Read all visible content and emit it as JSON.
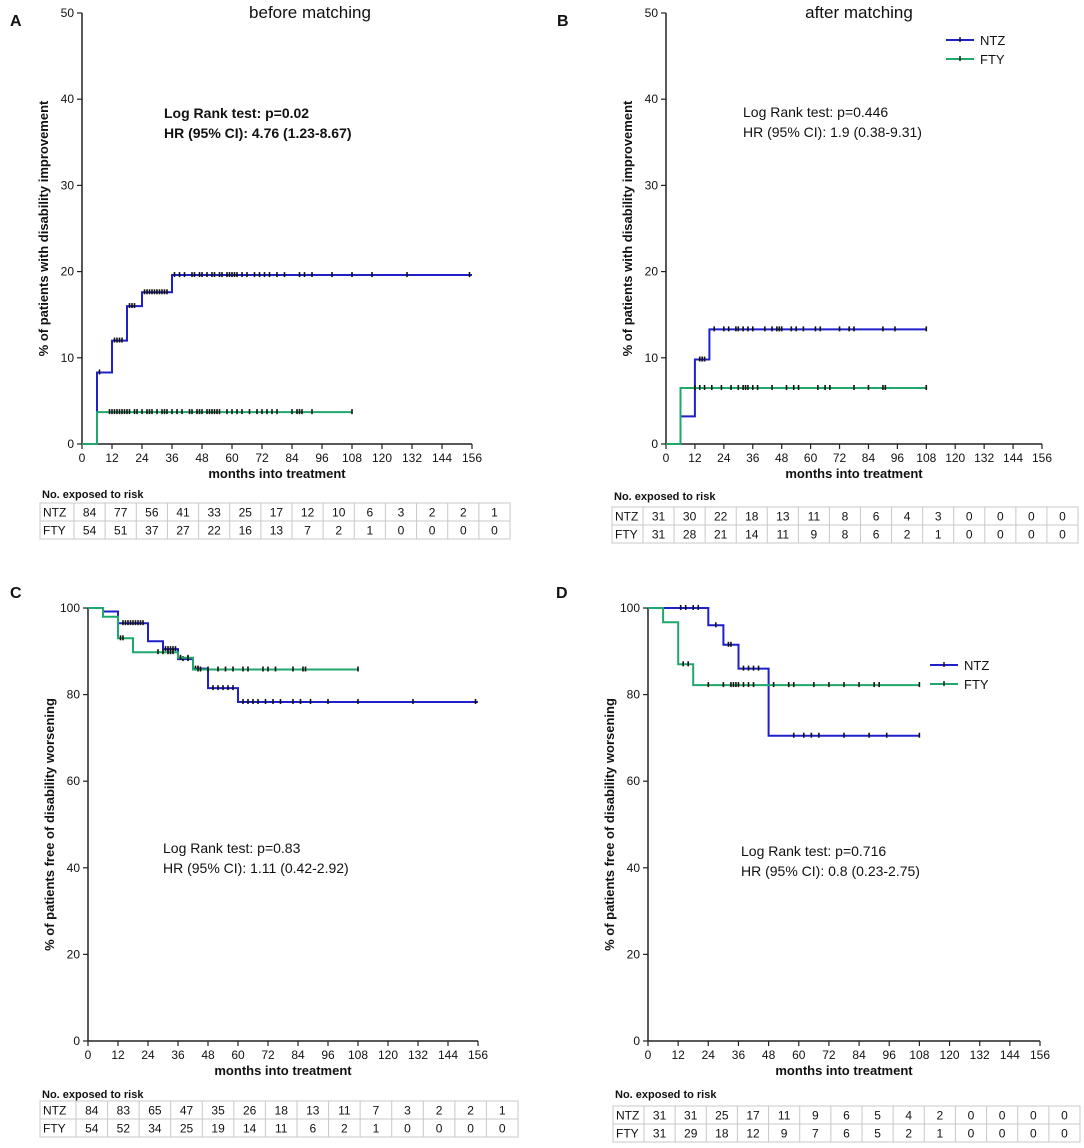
{
  "colors": {
    "NTZ": "#1f1fcc",
    "FTY": "#1fa86c",
    "axis": "#222222"
  },
  "chart_data": [
    {
      "id": "A",
      "type": "line",
      "panel_label": "A",
      "title": "before matching",
      "xlabel": "months into treatment",
      "ylabel": "% of patients with disability improvement",
      "xlim": [
        0,
        156
      ],
      "ylim": [
        0,
        50
      ],
      "xticks": [
        0,
        12,
        24,
        36,
        48,
        60,
        72,
        84,
        96,
        108,
        120,
        132,
        144,
        156
      ],
      "yticks": [
        0,
        10,
        20,
        30,
        40,
        50
      ],
      "stats": [
        "Log Rank test: p=0.02",
        "HR (95% CI): 4.76 (1.23-8.67)"
      ],
      "stats_bold": true,
      "legend": [],
      "series": [
        {
          "name": "NTZ",
          "steps": [
            [
              0,
              0
            ],
            [
              6,
              0
            ],
            [
              6,
              8.3
            ],
            [
              12,
              8.3
            ],
            [
              12,
              12
            ],
            [
              18,
              12
            ],
            [
              18,
              16
            ],
            [
              24,
              16
            ],
            [
              24,
              17.6
            ],
            [
              36,
              17.6
            ],
            [
              36,
              19.6
            ],
            [
              156,
              19.6
            ]
          ],
          "censor": [
            7,
            13,
            14,
            15,
            16,
            19,
            20,
            21,
            25,
            26,
            27,
            28,
            29,
            30,
            31,
            32,
            33,
            34,
            37,
            39,
            41,
            44,
            45,
            47,
            48,
            50,
            52,
            53,
            55,
            56,
            58,
            59,
            60,
            61,
            62,
            64,
            66,
            69,
            71,
            73,
            75,
            78,
            81,
            87,
            89,
            92,
            100,
            108,
            116,
            130,
            155
          ]
        },
        {
          "name": "FTY",
          "steps": [
            [
              0,
              0
            ],
            [
              6,
              0
            ],
            [
              6,
              3.7
            ],
            [
              108,
              3.7
            ]
          ],
          "censor": [
            11,
            12,
            13,
            14,
            15,
            16,
            17,
            18,
            19,
            21,
            22,
            24,
            26,
            27,
            28,
            30,
            32,
            33,
            34,
            36,
            38,
            40,
            43,
            44,
            46,
            47,
            48,
            50,
            51,
            52,
            53,
            54,
            55,
            58,
            60,
            62,
            64,
            67,
            70,
            72,
            74,
            76,
            78,
            84,
            86,
            87,
            88,
            92,
            108
          ]
        }
      ],
      "risk_table": {
        "title": "No. exposed to risk",
        "rows": [
          {
            "label": "NTZ",
            "values": [
              "84",
              "77",
              "56",
              "41",
              "33",
              "25",
              "17",
              "12",
              "10",
              "6",
              "3",
              "2",
              "2",
              "1"
            ]
          },
          {
            "label": "FTY",
            "values": [
              "54",
              "51",
              "37",
              "27",
              "22",
              "16",
              "13",
              "7",
              "2",
              "1",
              "0",
              "0",
              "0",
              "0"
            ]
          }
        ]
      }
    },
    {
      "id": "B",
      "type": "line",
      "panel_label": "B",
      "title": "after matching",
      "xlabel": "months into treatment",
      "ylabel": "% of patients with disability improvement",
      "xlim": [
        0,
        156
      ],
      "ylim": [
        0,
        50
      ],
      "xticks": [
        0,
        12,
        24,
        36,
        48,
        60,
        72,
        84,
        96,
        108,
        120,
        132,
        144,
        156
      ],
      "yticks": [
        0,
        10,
        20,
        30,
        40,
        50
      ],
      "stats": [
        "Log Rank test: p=0.446",
        "HR (95% CI): 1.9 (0.38-9.31)"
      ],
      "stats_bold": false,
      "legend": [
        "NTZ",
        "FTY"
      ],
      "series": [
        {
          "name": "NTZ",
          "steps": [
            [
              0,
              0
            ],
            [
              6,
              0
            ],
            [
              6,
              3.2
            ],
            [
              12,
              3.2
            ],
            [
              12,
              9.8
            ],
            [
              18,
              9.8
            ],
            [
              18,
              13.3
            ],
            [
              108,
              13.3
            ]
          ],
          "censor": [
            14,
            15,
            16,
            20,
            24,
            26,
            29,
            30,
            32,
            34,
            36,
            41,
            44,
            46,
            47,
            48,
            52,
            54,
            57,
            62,
            64,
            72,
            76,
            78,
            90,
            95,
            108
          ]
        },
        {
          "name": "FTY",
          "steps": [
            [
              0,
              0
            ],
            [
              6,
              0
            ],
            [
              6,
              6.5
            ],
            [
              108,
              6.5
            ]
          ],
          "censor": [
            12,
            14,
            16,
            19,
            23,
            27,
            30,
            32,
            33,
            34,
            36,
            38,
            44,
            50,
            53,
            55,
            63,
            66,
            68,
            78,
            84,
            90,
            91,
            108
          ]
        }
      ],
      "risk_table": {
        "title": "No. exposed to risk",
        "rows": [
          {
            "label": "NTZ",
            "values": [
              "31",
              "30",
              "22",
              "18",
              "13",
              "11",
              "8",
              "6",
              "4",
              "3",
              "0",
              "0",
              "0",
              "0"
            ]
          },
          {
            "label": "FTY",
            "values": [
              "31",
              "28",
              "21",
              "14",
              "11",
              "9",
              "8",
              "6",
              "2",
              "1",
              "0",
              "0",
              "0",
              "0"
            ]
          }
        ]
      }
    },
    {
      "id": "C",
      "type": "line",
      "panel_label": "C",
      "title": "",
      "xlabel": "months into treatment",
      "ylabel": "% of patients free of disability worsening",
      "xlim": [
        0,
        156
      ],
      "ylim": [
        0,
        100
      ],
      "xticks": [
        0,
        12,
        24,
        36,
        48,
        60,
        72,
        84,
        96,
        108,
        120,
        132,
        144,
        156
      ],
      "yticks": [
        0,
        20,
        40,
        60,
        80,
        100
      ],
      "stats": [
        "Log Rank test: p=0.83",
        "HR (95% CI): 1.11 (0.42-2.92)"
      ],
      "stats_bold": false,
      "legend": [],
      "series": [
        {
          "name": "NTZ",
          "steps": [
            [
              0,
              100
            ],
            [
              6,
              100
            ],
            [
              6,
              99.2
            ],
            [
              12,
              99.2
            ],
            [
              12,
              96.5
            ],
            [
              24,
              96.5
            ],
            [
              24,
              92.3
            ],
            [
              30,
              92.3
            ],
            [
              30,
              90.5
            ],
            [
              36,
              90.5
            ],
            [
              36,
              88.2
            ],
            [
              42,
              88.2
            ],
            [
              42,
              86
            ],
            [
              48,
              86
            ],
            [
              48,
              81.5
            ],
            [
              60,
              81.5
            ],
            [
              60,
              78.3
            ],
            [
              156,
              78.3
            ]
          ],
          "censor": [
            14,
            15,
            16,
            17,
            18,
            19,
            20,
            21,
            22,
            31,
            32,
            33,
            34,
            35,
            38,
            40,
            43,
            44,
            50,
            52,
            54,
            56,
            58,
            62,
            64,
            66,
            68,
            71,
            74,
            77,
            82,
            85,
            89,
            96,
            108,
            130,
            155
          ]
        },
        {
          "name": "FTY",
          "steps": [
            [
              0,
              100
            ],
            [
              6,
              100
            ],
            [
              6,
              98
            ],
            [
              12,
              98
            ],
            [
              12,
              93
            ],
            [
              18,
              93
            ],
            [
              18,
              89.8
            ],
            [
              36,
              89.8
            ],
            [
              36,
              88.5
            ],
            [
              42,
              88.5
            ],
            [
              42,
              85.8
            ],
            [
              108,
              85.8
            ]
          ],
          "censor": [
            13,
            14,
            28,
            30,
            32,
            33,
            34,
            37,
            40,
            44,
            45,
            48,
            52,
            55,
            58,
            62,
            64,
            70,
            72,
            75,
            82,
            86,
            87,
            108
          ]
        }
      ],
      "risk_table": {
        "title": "No. exposed to risk",
        "rows": [
          {
            "label": "NTZ",
            "values": [
              "84",
              "83",
              "65",
              "47",
              "35",
              "26",
              "18",
              "13",
              "11",
              "7",
              "3",
              "2",
              "2",
              "1"
            ]
          },
          {
            "label": "FTY",
            "values": [
              "54",
              "52",
              "34",
              "25",
              "19",
              "14",
              "11",
              "6",
              "2",
              "1",
              "0",
              "0",
              "0",
              "0"
            ]
          }
        ]
      }
    },
    {
      "id": "D",
      "type": "line",
      "panel_label": "D",
      "title": "",
      "xlabel": "months into treatment",
      "ylabel": "% of patients free of disability worsening",
      "xlim": [
        0,
        156
      ],
      "ylim": [
        0,
        100
      ],
      "xticks": [
        0,
        12,
        24,
        36,
        48,
        60,
        72,
        84,
        96,
        108,
        120,
        132,
        144,
        156
      ],
      "yticks": [
        0,
        20,
        40,
        60,
        80,
        100
      ],
      "stats": [
        "Log Rank test: p=0.716",
        "HR (95% CI): 0.8 (0.23-2.75)"
      ],
      "stats_bold": false,
      "legend": [
        "NTZ",
        "FTY"
      ],
      "series": [
        {
          "name": "NTZ",
          "steps": [
            [
              0,
              100
            ],
            [
              24,
              100
            ],
            [
              24,
              96
            ],
            [
              30,
              96
            ],
            [
              30,
              91.5
            ],
            [
              36,
              91.5
            ],
            [
              36,
              86
            ],
            [
              48,
              86
            ],
            [
              48,
              70.5
            ],
            [
              108,
              70.5
            ]
          ],
          "censor": [
            13,
            15,
            18,
            20,
            27,
            32,
            33,
            38,
            40,
            42,
            44,
            58,
            62,
            65,
            68,
            78,
            88,
            95,
            108
          ]
        },
        {
          "name": "FTY",
          "steps": [
            [
              0,
              100
            ],
            [
              6,
              100
            ],
            [
              6,
              96.7
            ],
            [
              12,
              96.7
            ],
            [
              12,
              87
            ],
            [
              18,
              87
            ],
            [
              18,
              82.2
            ],
            [
              108,
              82.2
            ]
          ],
          "censor": [
            14,
            16,
            24,
            30,
            33,
            34,
            35,
            36,
            38,
            40,
            42,
            50,
            56,
            58,
            66,
            72,
            78,
            84,
            90,
            92,
            108
          ]
        }
      ],
      "risk_table": {
        "title": "No. exposed to risk",
        "rows": [
          {
            "label": "NTZ",
            "values": [
              "31",
              "31",
              "25",
              "17",
              "11",
              "9",
              "6",
              "5",
              "4",
              "2",
              "0",
              "0",
              "0",
              "0"
            ]
          },
          {
            "label": "FTY",
            "values": [
              "31",
              "29",
              "18",
              "12",
              "9",
              "7",
              "6",
              "5",
              "2",
              "1",
              "0",
              "0",
              "0",
              "0"
            ]
          }
        ]
      }
    }
  ]
}
